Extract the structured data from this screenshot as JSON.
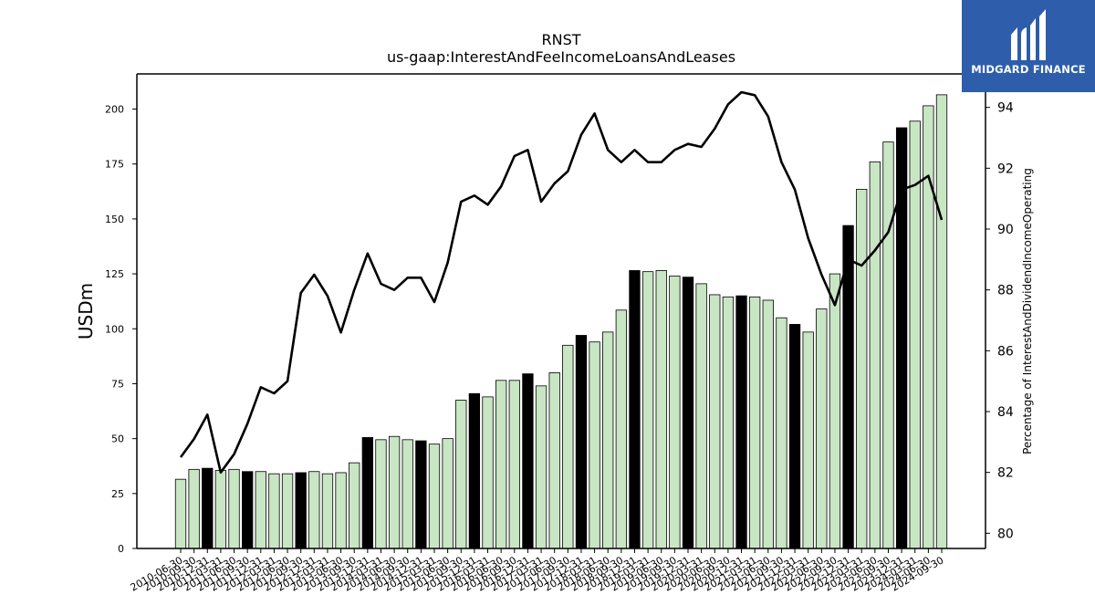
{
  "branding": {
    "logo_text": "MIDGARD FINANCE"
  },
  "chart_data": {
    "type": "bar",
    "title": "RNST",
    "subtitle": "us-gaap:InterestAndFeeIncomeLoansAndLeases",
    "ylabel": "USDm",
    "y2label": "Percentage of InterestAndDividendIncomeOperating",
    "ylim": [
      0,
      216
    ],
    "y2lim": [
      79.5,
      95.1
    ],
    "yticks": [
      0,
      25,
      50,
      75,
      100,
      125,
      150,
      175,
      200
    ],
    "y2ticks": [
      80,
      82,
      84,
      86,
      88,
      90,
      92,
      94
    ],
    "colors": {
      "bar": "#c9e6c4",
      "bar_highlight": "#000000",
      "line": "#000000",
      "edge": "#000000"
    },
    "categories": [
      "2010-06-30",
      "2010-09-30",
      "2010-12-31",
      "2011-03-31",
      "2011-06-30",
      "2011-09-30",
      "2011-12-31",
      "2012-03-31",
      "2012-06-30",
      "2012-09-30",
      "2012-12-31",
      "2013-03-31",
      "2013-06-30",
      "2013-09-30",
      "2013-12-31",
      "2014-03-31",
      "2014-06-30",
      "2014-09-30",
      "2014-12-31",
      "2015-03-31",
      "2015-06-30",
      "2015-09-30",
      "2015-12-31",
      "2016-03-31",
      "2016-06-30",
      "2016-09-30",
      "2016-12-31",
      "2017-03-31",
      "2017-06-30",
      "2017-09-30",
      "2017-12-31",
      "2018-03-31",
      "2018-06-30",
      "2018-09-30",
      "2018-12-31",
      "2019-03-31",
      "2019-06-30",
      "2019-09-30",
      "2019-12-31",
      "2020-03-31",
      "2020-06-30",
      "2020-09-30",
      "2020-12-31",
      "2021-03-31",
      "2021-06-30",
      "2021-09-30",
      "2021-12-31",
      "2022-03-31",
      "2022-06-30",
      "2022-09-30",
      "2022-12-31",
      "2023-03-31",
      "2023-06-30",
      "2023-09-30",
      "2023-12-31",
      "2024-03-31",
      "2024-06-30",
      "2024-09-30"
    ],
    "series": [
      {
        "values": [
          31.5,
          36,
          36.5,
          35.5,
          36,
          35,
          35,
          34,
          34,
          34.5,
          35,
          34,
          34.5,
          39,
          50.5,
          49.5,
          51,
          49.5,
          49,
          47.5,
          50,
          67.5,
          70.5,
          69,
          76.5,
          76.5,
          79.5,
          74,
          80,
          92.5,
          97,
          94,
          98.5,
          108.5,
          126.5,
          126,
          126.5,
          124,
          123.5,
          120.5,
          115.5,
          114.5,
          115,
          114.5,
          113,
          105,
          102,
          98.5,
          109,
          125,
          147,
          163.5,
          176,
          185,
          191.5,
          194.5,
          201.5,
          206.5
        ],
        "highlight": [
          false,
          false,
          true,
          false,
          false,
          true,
          false,
          false,
          false,
          true,
          false,
          false,
          false,
          false,
          true,
          false,
          false,
          false,
          true,
          false,
          false,
          false,
          true,
          false,
          false,
          false,
          true,
          false,
          false,
          false,
          true,
          false,
          false,
          false,
          true,
          false,
          false,
          false,
          true,
          false,
          false,
          false,
          true,
          false,
          false,
          false,
          true,
          false,
          false,
          false,
          true,
          false,
          false,
          false,
          true,
          false,
          false,
          false
        ]
      },
      {
        "axis": "right",
        "values": [
          82.5,
          83.1,
          83.9,
          82.0,
          82.6,
          83.6,
          84.8,
          84.6,
          85.0,
          87.9,
          88.5,
          87.8,
          86.6,
          88.0,
          89.2,
          88.2,
          88.0,
          88.4,
          88.4,
          87.6,
          88.9,
          90.9,
          91.1,
          90.8,
          91.4,
          92.4,
          92.6,
          90.9,
          91.5,
          91.9,
          93.1,
          93.8,
          92.6,
          92.2,
          92.6,
          92.2,
          92.2,
          92.6,
          92.8,
          92.7,
          93.3,
          94.1,
          94.5,
          94.4,
          93.7,
          92.2,
          91.3,
          89.7,
          88.5,
          87.5,
          89.0,
          88.8,
          89.3,
          89.9,
          91.3,
          91.45,
          91.75,
          90.3
        ]
      }
    ]
  }
}
